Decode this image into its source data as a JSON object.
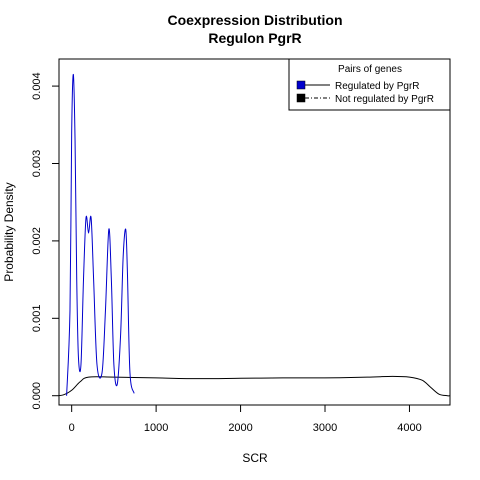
{
  "chart_data": {
    "type": "line",
    "title": "Coexpression Distribution",
    "subtitle": "Regulon PgrR",
    "xlabel": "SCR",
    "ylabel": "Probability Density",
    "xlim": [
      -150,
      4480
    ],
    "ylim": [
      -0.00012,
      0.00435
    ],
    "x_ticks": [
      0,
      1000,
      2000,
      3000,
      4000
    ],
    "x_tick_labels": [
      "0",
      "1000",
      "2000",
      "3000",
      "4000"
    ],
    "y_ticks": [
      0.0,
      0.001,
      0.002,
      0.003,
      0.004
    ],
    "y_tick_labels": [
      "0.000",
      "0.001",
      "0.002",
      "0.003",
      "0.004"
    ],
    "grid": false,
    "legend": {
      "title": "Pairs of genes",
      "position": "top-right",
      "entries": [
        "Regulated by  PgrR",
        "Not regulated by  PgrR"
      ]
    },
    "series": [
      {
        "name": "Regulated by  PgrR",
        "color": "#0000cc",
        "style": "solid",
        "x": [
          -60,
          -20,
          0,
          20,
          40,
          60,
          80,
          110,
          140,
          170,
          200,
          230,
          260,
          300,
          360,
          400,
          440,
          470,
          500,
          540,
          580,
          610,
          640,
          660,
          690,
          740
        ],
        "y": [
          0.0,
          0.0011,
          0.0034,
          0.00415,
          0.0033,
          0.0015,
          0.0005,
          0.0004,
          0.0015,
          0.0023,
          0.0021,
          0.0023,
          0.0015,
          0.0004,
          0.0003,
          0.0011,
          0.00215,
          0.0015,
          0.0004,
          0.00015,
          0.0008,
          0.0018,
          0.00215,
          0.0016,
          0.0003,
          3e-05
        ]
      },
      {
        "name": "Not regulated by  PgrR",
        "color": "#000000",
        "style": "solid",
        "x": [
          -200,
          -100,
          0,
          100,
          200,
          500,
          1000,
          1500,
          2000,
          2500,
          3000,
          3500,
          3800,
          4000,
          4150,
          4250,
          4350,
          4450,
          4480
        ],
        "y": [
          0.0,
          1e-05,
          7e-05,
          0.00018,
          0.00024,
          0.00024,
          0.00023,
          0.00022,
          0.000225,
          0.00023,
          0.00023,
          0.00024,
          0.00025,
          0.00024,
          0.0002,
          0.00011,
          2e-05,
          0.0,
          0.0
        ]
      }
    ]
  }
}
